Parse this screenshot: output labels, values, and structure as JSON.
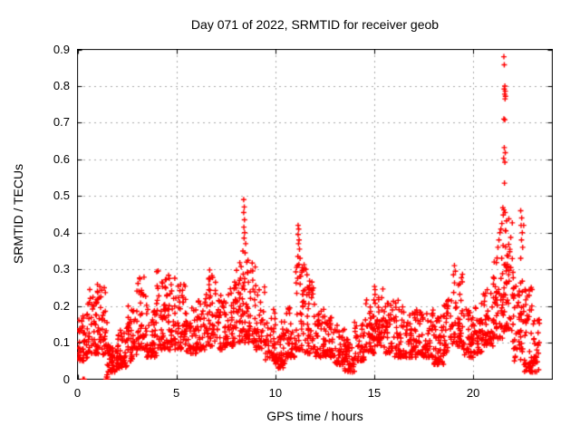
{
  "window": {
    "background": "#ffffff",
    "kind": "gnuplot-style scatter figure"
  },
  "chart_data": {
    "type": "scatter",
    "title": "Day 071 of 2022, SRMTID for receiver geob",
    "xlabel": "GPS time / hours",
    "ylabel": "SRMTID / TECUs",
    "xlim": [
      0,
      24
    ],
    "ylim": [
      0,
      0.9
    ],
    "xticks": [
      {
        "v": 0,
        "label": "0"
      },
      {
        "v": 5,
        "label": "5"
      },
      {
        "v": 10,
        "label": "10"
      },
      {
        "v": 15,
        "label": "15"
      },
      {
        "v": 20,
        "label": "20"
      }
    ],
    "yticks": [
      {
        "v": 0,
        "label": "0"
      },
      {
        "v": 0.1,
        "label": "0.1"
      },
      {
        "v": 0.2,
        "label": "0.2"
      },
      {
        "v": 0.3,
        "label": "0.3"
      },
      {
        "v": 0.4,
        "label": "0.4"
      },
      {
        "v": 0.5,
        "label": "0.5"
      },
      {
        "v": 0.6,
        "label": "0.6"
      },
      {
        "v": 0.7,
        "label": "0.7"
      },
      {
        "v": 0.8,
        "label": "0.8"
      },
      {
        "v": 0.9,
        "label": "0.9"
      }
    ],
    "grid": true,
    "grid_color": "#a9a9a9",
    "grid_style": "dotted",
    "axis_color": "#000000",
    "legend": "none",
    "marker": "plus",
    "marker_color": "#ff0000",
    "marker_size_px": 7,
    "seed": 2022071,
    "series": [
      {
        "name": "SRMTID",
        "representation": "density_bins",
        "bin_format": "[t_start_hours, value_lo, value_hi, n_points, optional_bin_width_hours]",
        "default_bin_width_hours": 0.5,
        "bins": [
          [
            0.0,
            0.05,
            0.18,
            45
          ],
          [
            0.5,
            0.07,
            0.25,
            45
          ],
          [
            1.0,
            0.06,
            0.27,
            45
          ],
          [
            1.5,
            0.02,
            0.1,
            50
          ],
          [
            2.0,
            0.03,
            0.14,
            45
          ],
          [
            2.5,
            0.05,
            0.22,
            45
          ],
          [
            3.0,
            0.08,
            0.3,
            45
          ],
          [
            3.5,
            0.06,
            0.2,
            45
          ],
          [
            4.0,
            0.08,
            0.3,
            50
          ],
          [
            4.5,
            0.08,
            0.29,
            45
          ],
          [
            5.0,
            0.08,
            0.26,
            45
          ],
          [
            5.5,
            0.07,
            0.2,
            40
          ],
          [
            6.0,
            0.08,
            0.22,
            40
          ],
          [
            6.5,
            0.09,
            0.3,
            45
          ],
          [
            7.0,
            0.08,
            0.24,
            40
          ],
          [
            7.5,
            0.09,
            0.28,
            45
          ],
          [
            8.0,
            0.1,
            0.33,
            50
          ],
          [
            8.5,
            0.1,
            0.33,
            45
          ],
          [
            9.0,
            0.08,
            0.28,
            40
          ],
          [
            9.5,
            0.05,
            0.2,
            40
          ],
          [
            10.0,
            0.03,
            0.16,
            45
          ],
          [
            10.5,
            0.06,
            0.2,
            40
          ],
          [
            11.0,
            0.08,
            0.32,
            50
          ],
          [
            11.5,
            0.07,
            0.28,
            45
          ],
          [
            12.0,
            0.06,
            0.2,
            40
          ],
          [
            12.5,
            0.06,
            0.17,
            40
          ],
          [
            13.0,
            0.04,
            0.15,
            40
          ],
          [
            13.5,
            0.02,
            0.11,
            45
          ],
          [
            14.0,
            0.05,
            0.16,
            40
          ],
          [
            14.5,
            0.07,
            0.22,
            45
          ],
          [
            15.0,
            0.09,
            0.26,
            45
          ],
          [
            15.5,
            0.07,
            0.22,
            40
          ],
          [
            16.0,
            0.06,
            0.22,
            40
          ],
          [
            16.5,
            0.06,
            0.18,
            40
          ],
          [
            17.0,
            0.06,
            0.2,
            40
          ],
          [
            17.5,
            0.06,
            0.19,
            40
          ],
          [
            18.0,
            0.04,
            0.18,
            45
          ],
          [
            18.5,
            0.07,
            0.22,
            40
          ],
          [
            19.0,
            0.09,
            0.3,
            45
          ],
          [
            19.5,
            0.06,
            0.2,
            40
          ],
          [
            20.0,
            0.07,
            0.22,
            40
          ],
          [
            20.5,
            0.09,
            0.25,
            40
          ],
          [
            21.0,
            0.11,
            0.34,
            50
          ],
          [
            21.5,
            0.13,
            0.46,
            55
          ],
          [
            22.0,
            0.05,
            0.3,
            50
          ],
          [
            22.5,
            0.02,
            0.28,
            45
          ],
          [
            23.0,
            0.02,
            0.17,
            30,
            0.35
          ]
        ],
        "highlight_points": [
          [
            0.28,
            0.0
          ],
          [
            0.34,
            0.0
          ],
          [
            1.44,
            0.0
          ],
          [
            1.47,
            0.0
          ],
          [
            1.5,
            0.0
          ],
          [
            1.53,
            0.0
          ],
          [
            1.47,
            0.006
          ],
          [
            1.51,
            0.006
          ],
          [
            1.49,
            0.012
          ],
          [
            8.4,
            0.49
          ],
          [
            8.43,
            0.47
          ],
          [
            8.4,
            0.455
          ],
          [
            8.44,
            0.435
          ],
          [
            8.41,
            0.415
          ],
          [
            8.45,
            0.4
          ],
          [
            8.42,
            0.385
          ],
          [
            8.5,
            0.37
          ],
          [
            8.36,
            0.35
          ],
          [
            8.47,
            0.345
          ],
          [
            11.15,
            0.42
          ],
          [
            11.18,
            0.41
          ],
          [
            11.15,
            0.395
          ],
          [
            11.2,
            0.38
          ],
          [
            11.17,
            0.37
          ],
          [
            11.22,
            0.355
          ],
          [
            11.14,
            0.335
          ],
          [
            11.25,
            0.33
          ],
          [
            11.55,
            0.3
          ],
          [
            11.6,
            0.285
          ],
          [
            18.08,
            0.055
          ],
          [
            18.1,
            0.055
          ],
          [
            18.12,
            0.055
          ],
          [
            18.1,
            0.06
          ],
          [
            19.05,
            0.31
          ],
          [
            19.1,
            0.295
          ],
          [
            19.0,
            0.285
          ],
          [
            21.25,
            0.36
          ],
          [
            21.3,
            0.38
          ],
          [
            21.35,
            0.4
          ],
          [
            21.4,
            0.41
          ],
          [
            21.45,
            0.425
          ],
          [
            21.55,
            0.88
          ],
          [
            21.57,
            0.858
          ],
          [
            21.6,
            0.8
          ],
          [
            21.57,
            0.792
          ],
          [
            21.62,
            0.786
          ],
          [
            21.59,
            0.778
          ],
          [
            21.63,
            0.772
          ],
          [
            21.61,
            0.765
          ],
          [
            21.55,
            0.71
          ],
          [
            21.6,
            0.708
          ],
          [
            21.57,
            0.632
          ],
          [
            21.62,
            0.618
          ],
          [
            21.54,
            0.603
          ],
          [
            21.6,
            0.592
          ],
          [
            21.58,
            0.535
          ],
          [
            21.5,
            0.468
          ],
          [
            21.55,
            0.462
          ],
          [
            21.61,
            0.455
          ],
          [
            21.52,
            0.448
          ],
          [
            22.4,
            0.46
          ],
          [
            22.45,
            0.44
          ],
          [
            22.42,
            0.42
          ],
          [
            22.48,
            0.4
          ],
          [
            22.44,
            0.38
          ],
          [
            22.5,
            0.36
          ],
          [
            22.4,
            0.33
          ],
          [
            22.55,
            0.42
          ],
          [
            22.7,
            0.025
          ],
          [
            22.85,
            0.03
          ],
          [
            22.9,
            0.045
          ],
          [
            23.0,
            0.02
          ],
          [
            23.1,
            0.05
          ],
          [
            23.2,
            0.06
          ]
        ]
      }
    ]
  }
}
